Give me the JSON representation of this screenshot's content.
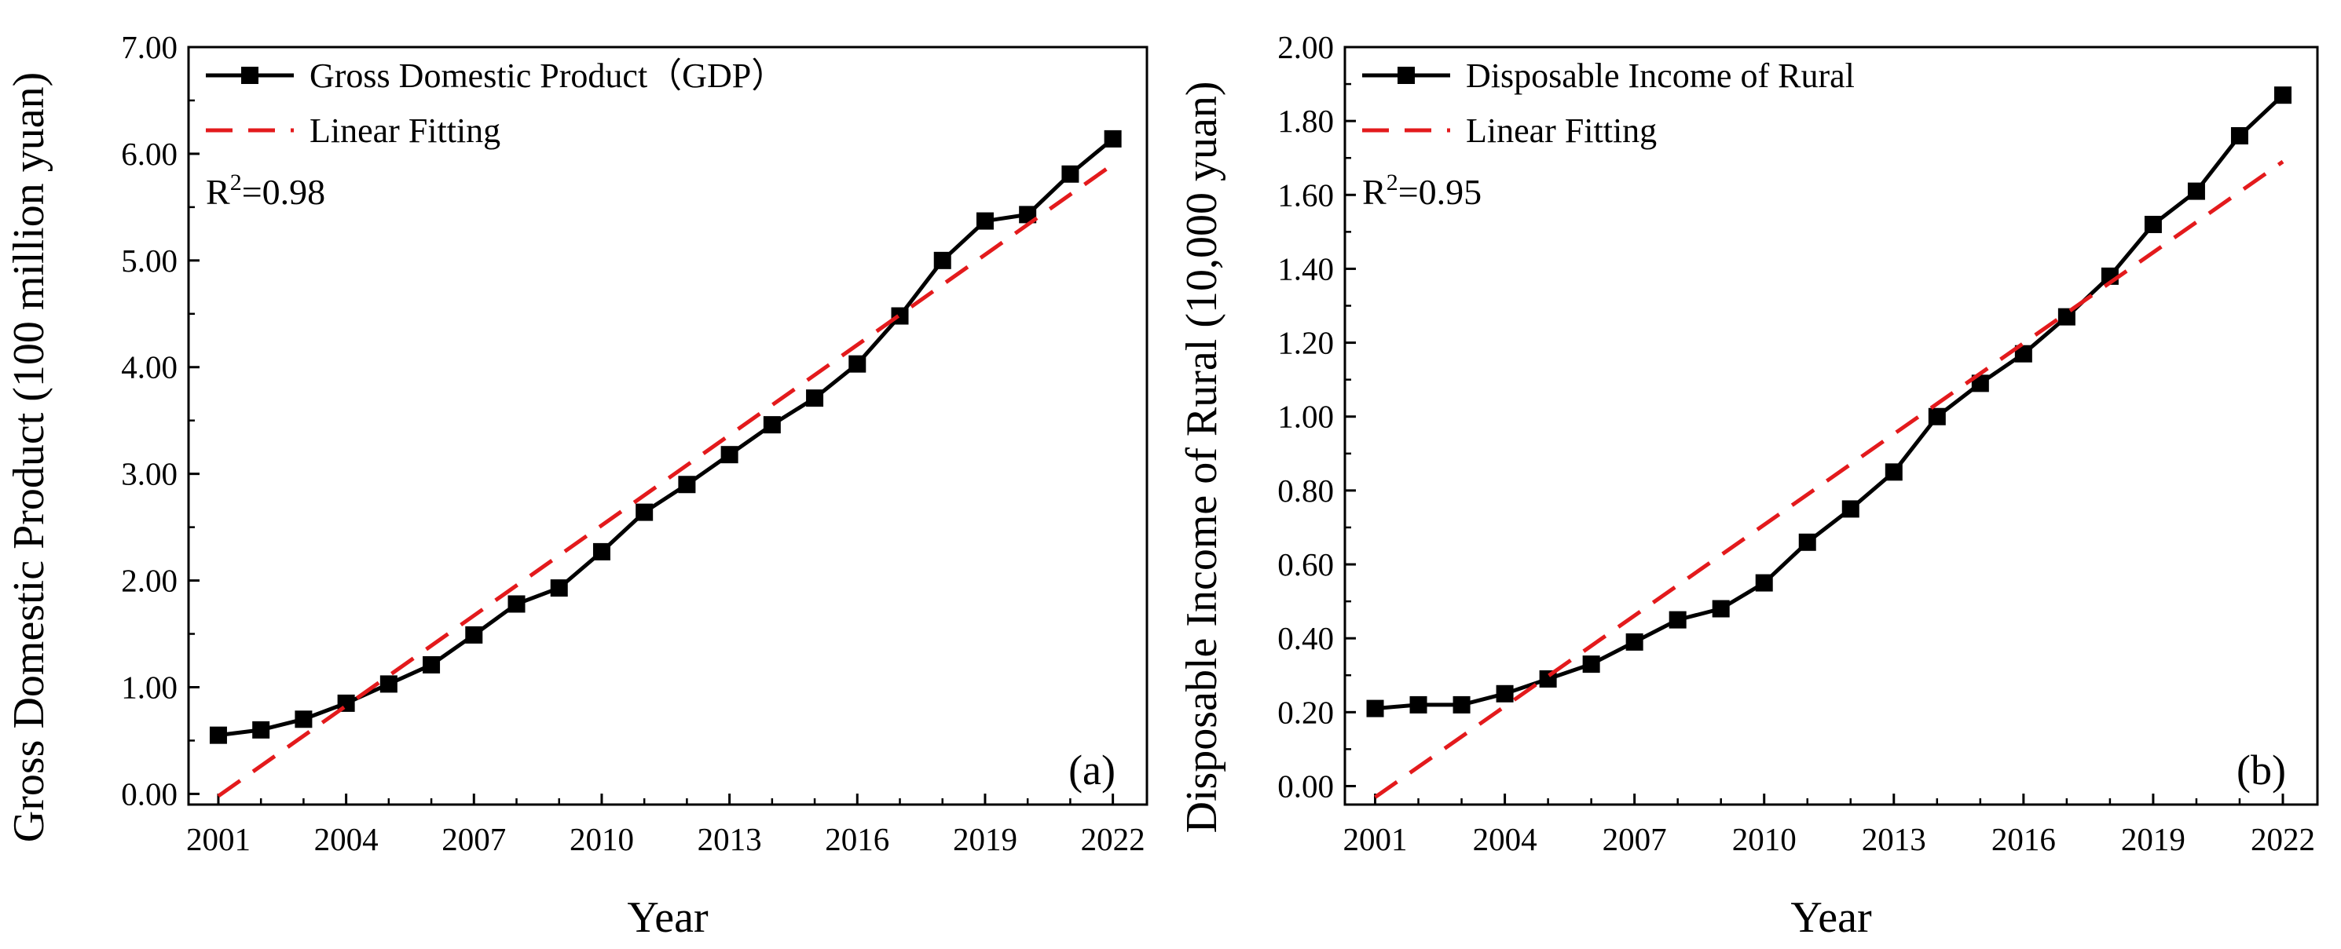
{
  "chart_data": [
    {
      "type": "line",
      "panel_label": "(a)",
      "xlabel": "Year",
      "ylabel": "Gross Domestic Product (100 million yuan)",
      "xlim": [
        2000.3,
        2022.8
      ],
      "ylim": [
        -0.1,
        7.0
      ],
      "xticks": [
        2001,
        2004,
        2007,
        2010,
        2013,
        2016,
        2019,
        2022
      ],
      "xtick_labels": [
        "2001",
        "2004",
        "2007",
        "2010",
        "2013",
        "2016",
        "2019",
        "2022"
      ],
      "yticks": [
        0,
        1,
        2,
        3,
        4,
        5,
        6,
        7
      ],
      "ytick_labels": [
        "0.00",
        "1.00",
        "2.00",
        "3.00",
        "4.00",
        "5.00",
        "6.00",
        "7.00"
      ],
      "legend_position": "top-left",
      "annotation": {
        "base": "R",
        "sup": "2",
        "rest": "=0.98"
      },
      "series": [
        {
          "name": "Gross Domestic Product（GDP）",
          "style": "line-square-markers",
          "color": "#000000",
          "x": [
            2001,
            2002,
            2003,
            2004,
            2005,
            2006,
            2007,
            2008,
            2009,
            2010,
            2011,
            2012,
            2013,
            2014,
            2015,
            2016,
            2017,
            2018,
            2019,
            2020,
            2021,
            2022
          ],
          "y": [
            0.55,
            0.6,
            0.7,
            0.85,
            1.03,
            1.21,
            1.49,
            1.78,
            1.93,
            2.27,
            2.64,
            2.9,
            3.18,
            3.46,
            3.71,
            4.03,
            4.48,
            5.0,
            5.37,
            5.43,
            5.81,
            6.14
          ]
        },
        {
          "name": "Linear Fitting",
          "style": "dashed",
          "color": "#e31a1c",
          "x": [
            2001,
            2022
          ],
          "y": [
            -0.02,
            5.9
          ]
        }
      ]
    },
    {
      "type": "line",
      "panel_label": "(b)",
      "xlabel": "Year",
      "ylabel": "Disposable Income of Rural (10,000 yuan)",
      "xlim": [
        2000.3,
        2022.8
      ],
      "ylim": [
        -0.05,
        2.0
      ],
      "xticks": [
        2001,
        2004,
        2007,
        2010,
        2013,
        2016,
        2019,
        2022
      ],
      "xtick_labels": [
        "2001",
        "2004",
        "2007",
        "2010",
        "2013",
        "2016",
        "2019",
        "2022"
      ],
      "yticks": [
        0,
        0.2,
        0.4,
        0.6,
        0.8,
        1.0,
        1.2,
        1.4,
        1.6,
        1.8,
        2.0
      ],
      "ytick_labels": [
        "0.00",
        "0.20",
        "0.40",
        "0.60",
        "0.80",
        "1.00",
        "1.20",
        "1.40",
        "1.60",
        "1.80",
        "2.00"
      ],
      "legend_position": "top-left",
      "annotation": {
        "base": "R",
        "sup": "2",
        "rest": "=0.95"
      },
      "series": [
        {
          "name": "Disposable Income of Rural",
          "style": "line-square-markers",
          "color": "#000000",
          "x": [
            2001,
            2002,
            2003,
            2004,
            2005,
            2006,
            2007,
            2008,
            2009,
            2010,
            2011,
            2012,
            2013,
            2014,
            2015,
            2016,
            2017,
            2018,
            2019,
            2020,
            2021,
            2022
          ],
          "y": [
            0.21,
            0.22,
            0.22,
            0.25,
            0.29,
            0.33,
            0.39,
            0.45,
            0.48,
            0.55,
            0.66,
            0.75,
            0.85,
            1.0,
            1.09,
            1.17,
            1.27,
            1.38,
            1.52,
            1.61,
            1.76,
            1.87
          ]
        },
        {
          "name": "Linear Fitting",
          "style": "dashed",
          "color": "#e31a1c",
          "x": [
            2001,
            2022
          ],
          "y": [
            -0.03,
            1.69
          ]
        }
      ]
    }
  ]
}
